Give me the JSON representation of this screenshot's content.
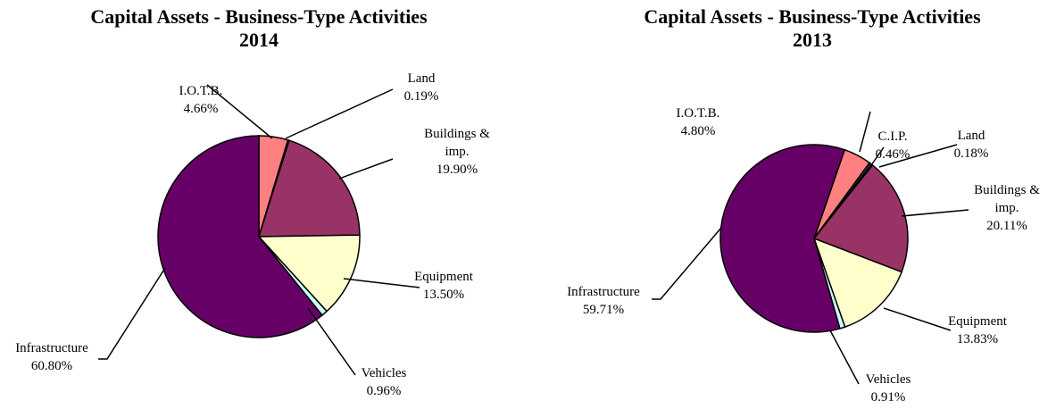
{
  "chart_data": [
    {
      "type": "pie",
      "title": "Capital Assets - Business-Type Activities",
      "subtitle": "2014",
      "categories": [
        "I.O.T.B.",
        "Land",
        "Buildings & imp.",
        "Equipment",
        "Vehicles",
        "Infrastructure"
      ],
      "values": [
        4.66,
        0.19,
        19.9,
        13.5,
        0.96,
        60.8
      ],
      "value_labels": [
        "4.66%",
        "0.19%",
        "19.90%",
        "13.50%",
        "0.96%",
        "60.80%"
      ],
      "colors": [
        "#ff8080",
        "#000080",
        "#993366",
        "#ffffcc",
        "#ccffff",
        "#660066"
      ]
    },
    {
      "type": "pie",
      "title": "Capital Assets - Business-Type Activities",
      "subtitle": "2013",
      "categories": [
        "I.O.T.B.",
        "C.I.P.",
        "Land",
        "Buildings & imp.",
        "Equipment",
        "Vehicles",
        "Infrastructure"
      ],
      "values": [
        4.8,
        0.46,
        0.18,
        20.11,
        13.83,
        0.91,
        59.71
      ],
      "value_labels": [
        "4.80%",
        "0.46%",
        "0.18%",
        "20.11%",
        "13.83%",
        "0.91%",
        "59.71%"
      ],
      "colors": [
        "#ff8080",
        "#333333",
        "#000080",
        "#993366",
        "#ffffcc",
        "#ccffff",
        "#660066"
      ]
    }
  ]
}
